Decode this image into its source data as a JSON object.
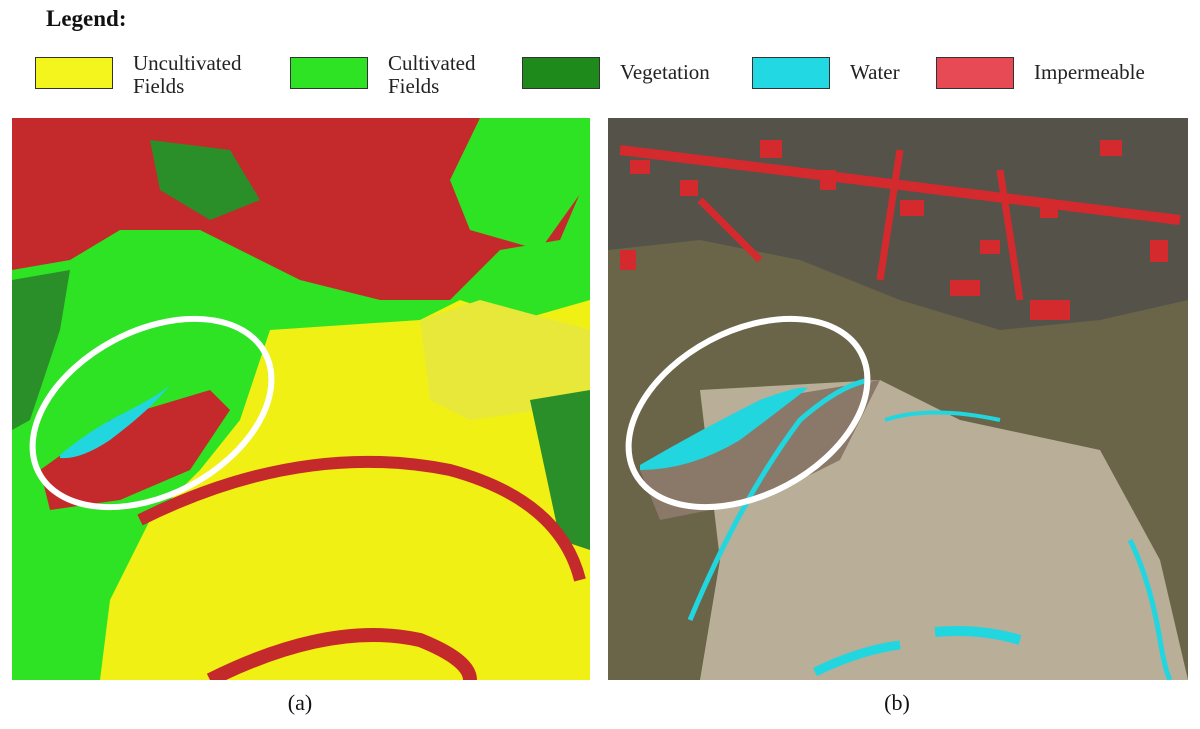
{
  "legend": {
    "title": "Legend:",
    "items": [
      {
        "label": "Uncultivated Fields",
        "color": "#f5f51e"
      },
      {
        "label": "Cultivated Fields",
        "color": "#2ee323"
      },
      {
        "label": "Vegetation",
        "color": "#1f8a1c"
      },
      {
        "label": "Water",
        "color": "#22d8e2"
      },
      {
        "label": "Impermeable",
        "color": "#e84a55"
      }
    ]
  },
  "panels": [
    {
      "caption": "(a)"
    },
    {
      "caption": "(b)"
    }
  ]
}
